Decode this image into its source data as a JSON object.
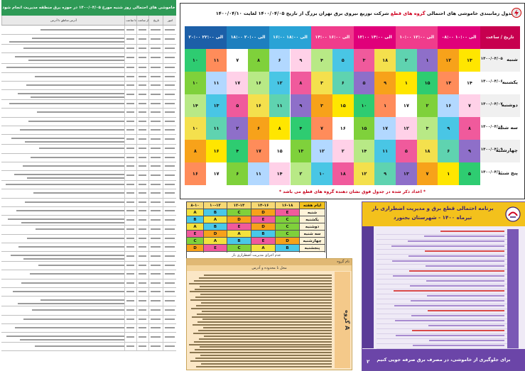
{
  "left": {
    "title": "خاموشی های احتمالی روز شنبه مورخ ۱۴۰۰/۰۴/۰۵ در حوزه برق منطقه مدیریت انجام شود خاموشی اعمال خواهد شد",
    "head": [
      "آدرس مناطق تا آدرس",
      "تا ساعت",
      "از ساعت",
      "تاریخ",
      "امور"
    ]
  },
  "schedule": {
    "title_pre": "جدول زمانبندی خاموشی های احتمالی",
    "title_red": "گروه های قطع",
    "title_post": "شرکت توزیع نیروی برق تهران بزرگ از تاریخ ۱۴۰۰/۰۴/۰۵ لغایت ۱۴۰۰/۰۴/۱۰",
    "corner": "تاریخ / ساعت",
    "slots": [
      "۰۸:۰۰ الی ۱۰:۰۰",
      "۱۰:۰۰ الی ۱۲:۰۰",
      "۱۲:۰۰ الی ۱۴:۰۰",
      "۱۴:۰۰ الی ۱۶:۰۰",
      "۱۶:۰۰ الی ۱۸:۰۰",
      "۱۸:۰۰ الی ۲۰:۰۰",
      "۲۰:۰۰ الی ۲۲:۰۰"
    ],
    "slot_colors": [
      "#e0007a",
      "#f03c8c",
      "#e0007a",
      "#f03c8c",
      "#29a3d6",
      "#1d7fbf",
      "#1c5fa8"
    ],
    "days": [
      {
        "name": "شنبه",
        "date": "۱۴۰۰/۰۴/۰۵"
      },
      {
        "name": "یکشنبه",
        "date": "۱۴۰۰/۰۴/۰۶"
      },
      {
        "name": "دوشنبه",
        "date": "۱۴۰۰/۰۴/۰۷"
      },
      {
        "name": "سه شنبه",
        "date": "۱۴۰۰/۰۴/۰۸"
      },
      {
        "name": "چهارشنبه",
        "date": "۱۴۰۰/۰۴/۰۹"
      },
      {
        "name": "پنج شنبه",
        "date": "۱۴۰۰/۰۴/۱۰"
      }
    ],
    "cells": [
      [
        "۱۳",
        "۱۲",
        "۱",
        "۲",
        "۱۸",
        "۳",
        "۵",
        "۴",
        "۹",
        "۶",
        "۸",
        "۷",
        "۱۱",
        "۱۰"
      ],
      [
        "۱۴",
        "۱۳",
        "۱۵",
        "۱",
        "۹",
        "۵",
        "۶",
        "۳",
        "۸",
        "۱۲",
        "۱۶",
        "۱۷",
        "۱۱",
        "۱۰"
      ],
      [
        "۷",
        "۱۶",
        "۲",
        "۱۷",
        "۱",
        "۱۰",
        "۱۵",
        "۳",
        "۹",
        "۱۱",
        "۱۶",
        "۵",
        "۱۳",
        "۱۴"
      ],
      [
        "۸",
        "۹",
        "۳",
        "۱۲",
        "۱۷",
        "۱۵",
        "۱۶",
        "۷",
        "۴",
        "۸",
        "۶",
        "۲",
        "۱۱",
        "۱۰"
      ],
      [
        "۹",
        "۶",
        "۱۸",
        "۵",
        "۱۱",
        "۱۴",
        "۲",
        "۱۲",
        "۱۳",
        "۱۵",
        "۱۷",
        "۴",
        "۱۶",
        "۸"
      ],
      [
        "۵",
        "۱",
        "۷",
        "۱۳",
        "۹",
        "۱۲",
        "۱۸",
        "۱۰",
        "۲",
        "۱۴",
        "۱۱",
        "۶",
        "۱۷",
        "۱۶"
      ]
    ],
    "note": "* اعداد ذکر شده در جدول فوق نشان دهنده گروه های قطع می باشد *"
  },
  "mini": {
    "header": [
      "۸-۱۰",
      "۱۰-۱۲",
      "۱۲-۱۴",
      "۱۴-۱۶",
      "۱۶-۱۸",
      "ایام هفته"
    ],
    "rows": [
      [
        "A",
        "B",
        "C",
        "D",
        "E",
        "شنبه"
      ],
      [
        "B",
        "A",
        "D",
        "E",
        "C",
        "یکشنبه"
      ],
      [
        "A",
        "B",
        "E",
        "D",
        "C",
        "دوشنبه"
      ],
      [
        "E",
        "D",
        "A",
        "B",
        "C",
        "سه شنبه"
      ],
      [
        "C",
        "A",
        "B",
        "E",
        "D",
        "چهارشنبه"
      ],
      [
        "D",
        "E",
        "C",
        "A",
        "B",
        "پنجشنبه"
      ],
      [
        "",
        "",
        "",
        "",
        "",
        "جمعه"
      ]
    ],
    "foot": "عدم اجرای مدیریت اضطراری بار"
  },
  "bottom": {
    "h1": "نام گروه",
    "h2": "محل تا محدوده و آدرس",
    "side": "گروه A"
  },
  "poster": {
    "h1": "برنامه احتمالی قطع برق و مدیریت اضطراری بار",
    "h2": "تیرماه ۱۴۰۰ - شهرستان بجنورد",
    "foot": "برای جلوگیری از خاموشی، در مصرف برق صرفه جویی کنیم",
    "page": "۲"
  }
}
